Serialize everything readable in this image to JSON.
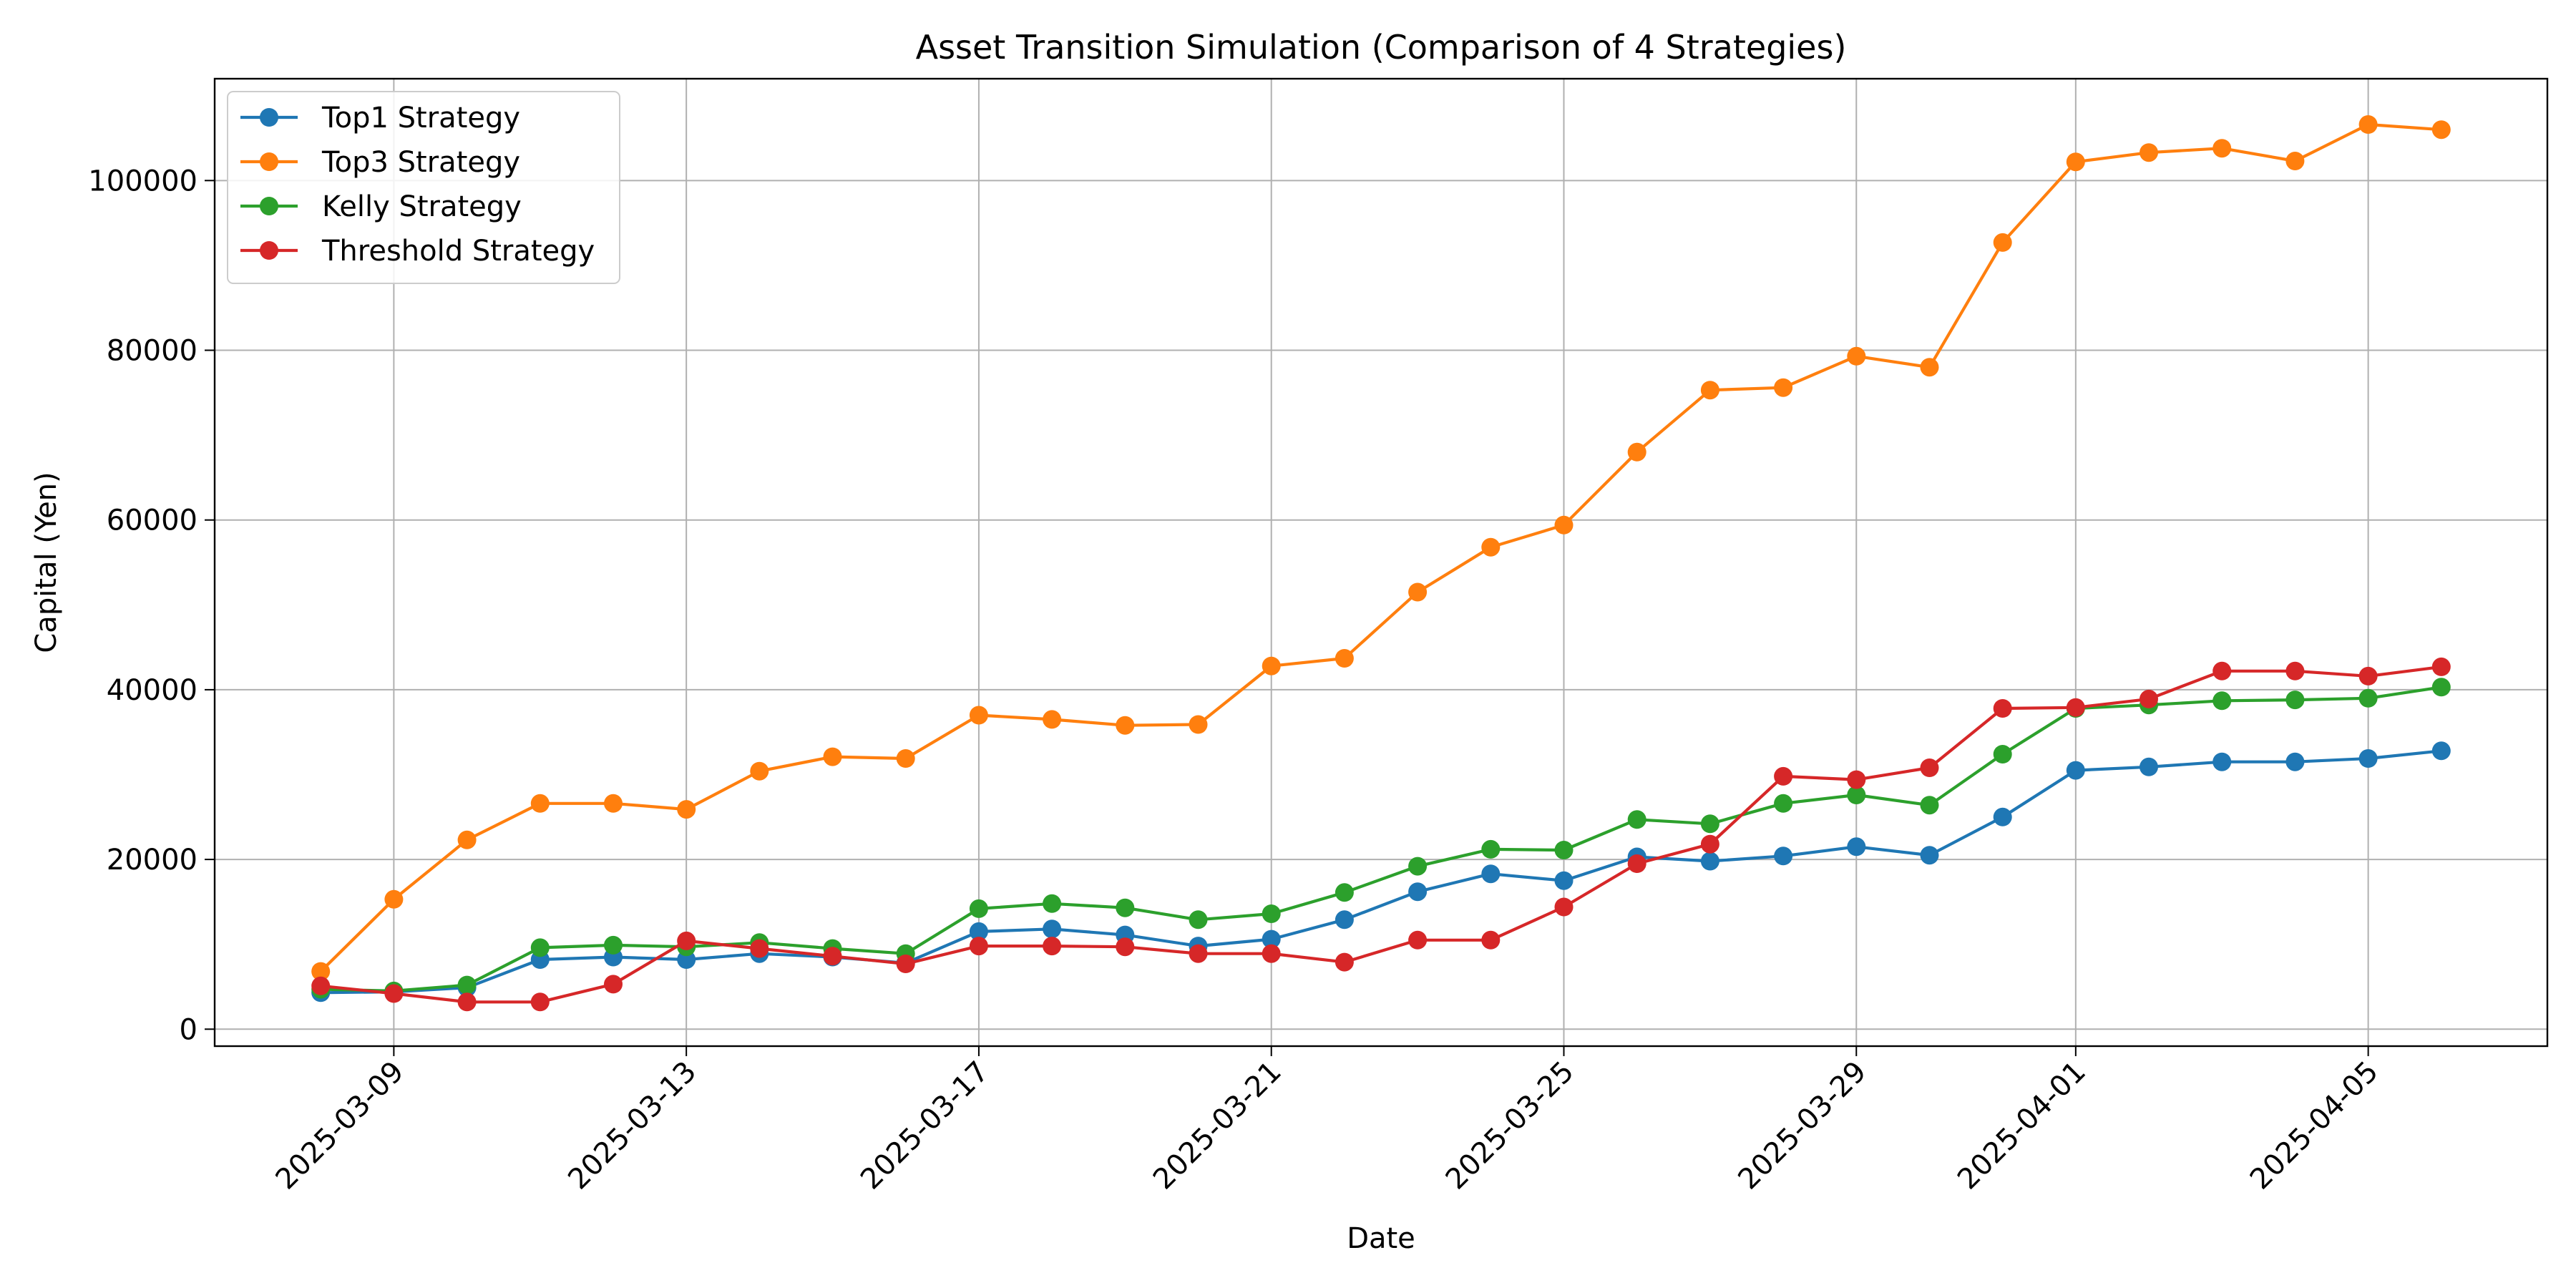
{
  "chart_data": {
    "type": "line",
    "title": "Asset Transition Simulation (Comparison of 4 Strategies)",
    "xlabel": "Date",
    "ylabel": "Capital (Yen)",
    "x": [
      "2025-03-08",
      "2025-03-09",
      "2025-03-10",
      "2025-03-11",
      "2025-03-12",
      "2025-03-13",
      "2025-03-14",
      "2025-03-15",
      "2025-03-16",
      "2025-03-17",
      "2025-03-18",
      "2025-03-19",
      "2025-03-20",
      "2025-03-21",
      "2025-03-22",
      "2025-03-23",
      "2025-03-24",
      "2025-03-25",
      "2025-03-26",
      "2025-03-27",
      "2025-03-28",
      "2025-03-29",
      "2025-03-30",
      "2025-03-31",
      "2025-04-01",
      "2025-04-02",
      "2025-04-03",
      "2025-04-04",
      "2025-04-05",
      "2025-04-06"
    ],
    "xticks": [
      "2025-03-09",
      "2025-03-13",
      "2025-03-17",
      "2025-03-21",
      "2025-03-25",
      "2025-03-29",
      "2025-04-01",
      "2025-04-05"
    ],
    "yticks": [
      0,
      20000,
      40000,
      60000,
      80000,
      100000
    ],
    "ylim": [
      -2000,
      112000
    ],
    "grid": true,
    "legend_position": "upper-left",
    "series": [
      {
        "name": "Top1 Strategy",
        "color": "#1f77b4",
        "values": [
          4300,
          4400,
          4900,
          8200,
          8500,
          8200,
          8900,
          8500,
          7800,
          11500,
          11800,
          11100,
          9800,
          10600,
          12900,
          16200,
          18300,
          17500,
          20300,
          19800,
          20400,
          21500,
          20500,
          25000,
          30500,
          30900,
          31500,
          31500,
          31900,
          32800
        ]
      },
      {
        "name": "Top3 Strategy",
        "color": "#ff7f0e",
        "values": [
          6800,
          15300,
          22300,
          26600,
          26600,
          25900,
          30400,
          32100,
          31900,
          37000,
          36500,
          35800,
          35900,
          42800,
          43700,
          51500,
          56800,
          59400,
          68000,
          75300,
          75600,
          79300,
          78000,
          92700,
          102200,
          103300,
          103800,
          102300,
          106600,
          106000
        ]
      },
      {
        "name": "Kelly Strategy",
        "color": "#2ca02c",
        "values": [
          4700,
          4500,
          5200,
          9600,
          9900,
          9700,
          10200,
          9500,
          8900,
          14200,
          14800,
          14300,
          12900,
          13600,
          16100,
          19200,
          21200,
          21100,
          24700,
          24200,
          26600,
          27600,
          26400,
          32400,
          37800,
          38200,
          38700,
          38800,
          39000,
          40300
        ]
      },
      {
        "name": "Threshold Strategy",
        "color": "#d62728",
        "values": [
          5100,
          4200,
          3200,
          3200,
          5300,
          10400,
          9500,
          8600,
          7700,
          9800,
          9800,
          9700,
          8900,
          8900,
          7900,
          10500,
          10500,
          14400,
          19500,
          21800,
          29800,
          29400,
          30800,
          37800,
          37900,
          38900,
          42200,
          42200,
          41600,
          42700
        ]
      }
    ]
  }
}
